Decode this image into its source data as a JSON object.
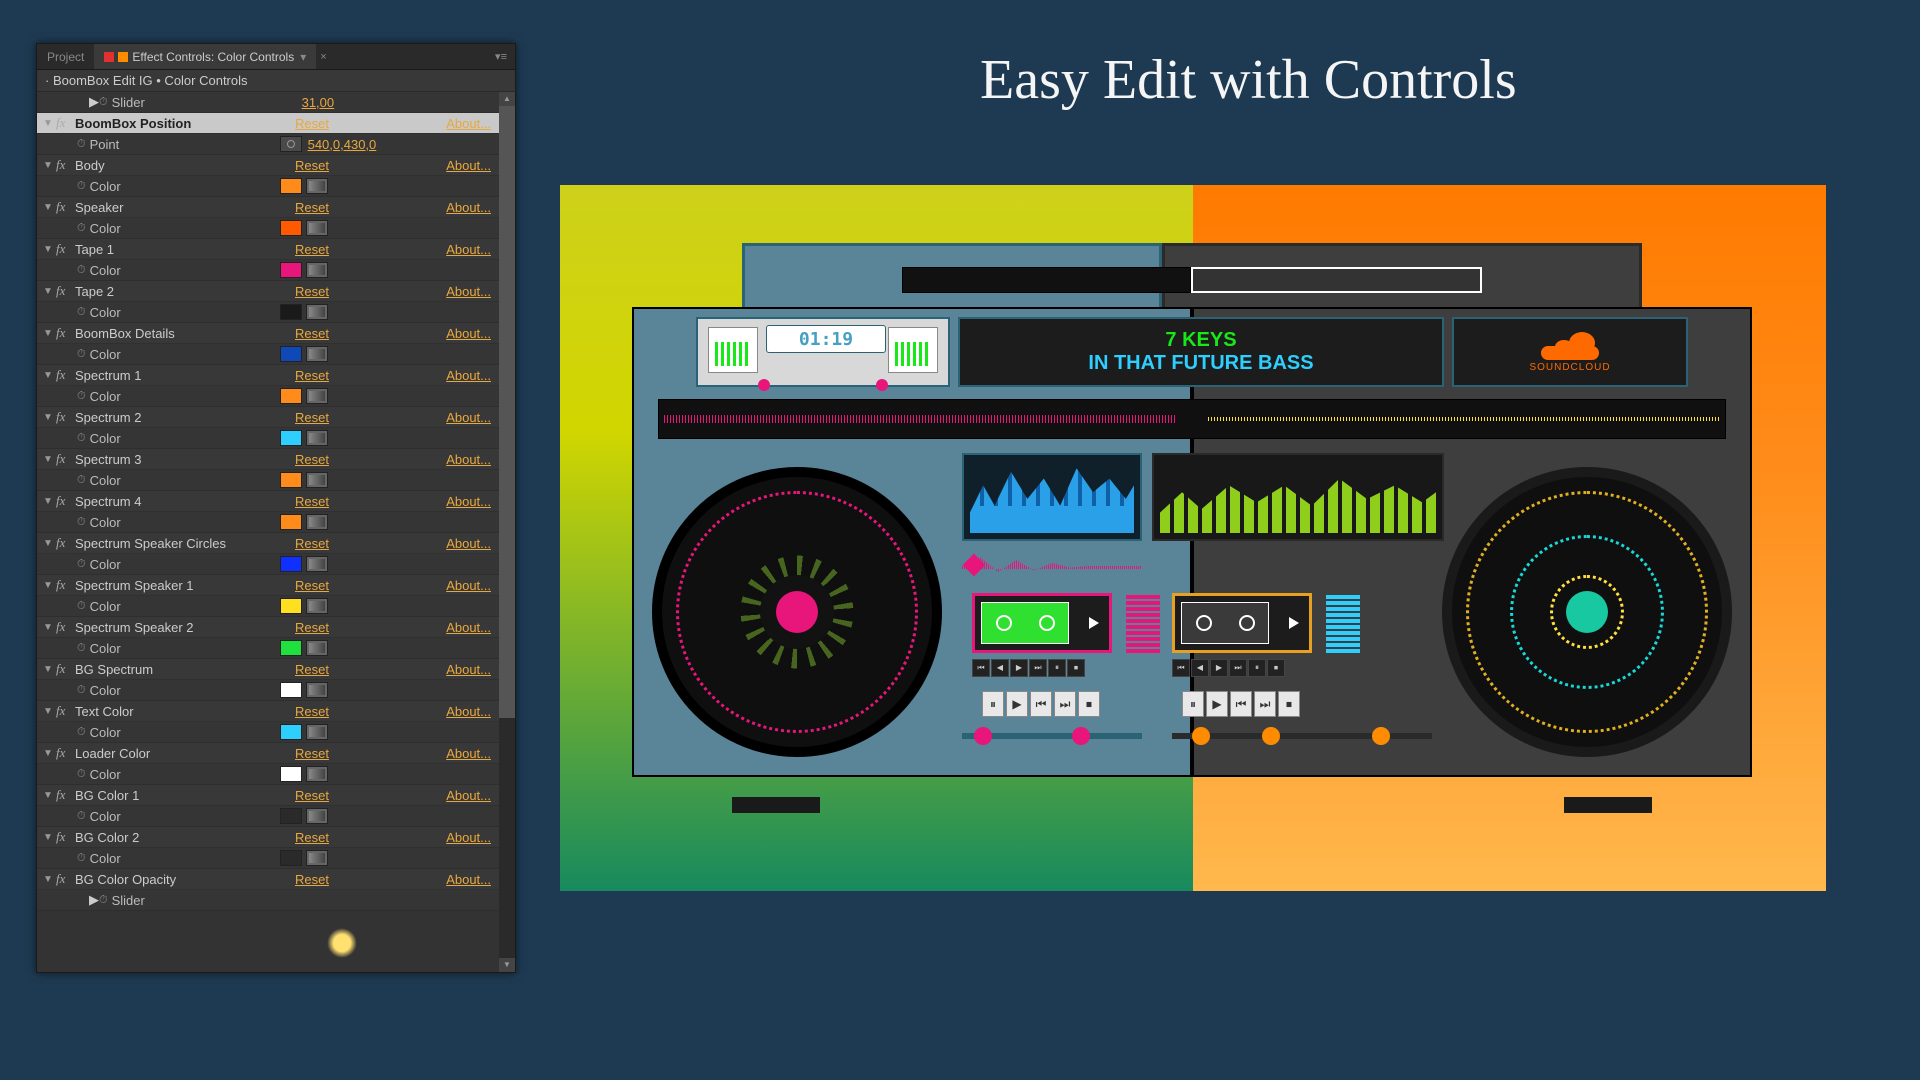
{
  "tabs": {
    "project": "Project",
    "effects": "Effect Controls: Color Controls"
  },
  "crumb": "· BoomBox Edit IG • Color Controls",
  "reset": "Reset",
  "about": "About...",
  "color_label": "Color",
  "slider_label": "Slider",
  "point_label": "Point",
  "toprow": {
    "label": "Slider",
    "val": "31,00"
  },
  "items": [
    {
      "name": "BoomBox Position",
      "sub": "point",
      "val": "540,0,430,0",
      "sel": true
    },
    {
      "name": "Body",
      "sub": "color",
      "swatch": "#ff8c1a"
    },
    {
      "name": "Speaker",
      "sub": "color",
      "swatch": "#ff5a00"
    },
    {
      "name": "Tape 1",
      "sub": "color",
      "swatch": "#e8157b"
    },
    {
      "name": "Tape 2",
      "sub": "color",
      "swatch": "#1a1a1a"
    },
    {
      "name": "BoomBox Details",
      "sub": "color",
      "swatch": "#1048b8"
    },
    {
      "name": "Spectrum 1",
      "sub": "color",
      "swatch": "#ff8c1a"
    },
    {
      "name": "Spectrum 2",
      "sub": "color",
      "swatch": "#2ecfff"
    },
    {
      "name": "Spectrum 3",
      "sub": "color",
      "swatch": "#ff8c1a"
    },
    {
      "name": "Spectrum 4",
      "sub": "color",
      "swatch": "#ff8c1a"
    },
    {
      "name": "Spectrum Speaker Circles",
      "sub": "color",
      "swatch": "#1030ff"
    },
    {
      "name": "Spectrum Speaker 1",
      "sub": "color",
      "swatch": "#ffe020"
    },
    {
      "name": "Spectrum Speaker 2",
      "sub": "color",
      "swatch": "#20e040"
    },
    {
      "name": "BG Spectrum",
      "sub": "color",
      "swatch": "#ffffff"
    },
    {
      "name": "Text Color",
      "sub": "color",
      "swatch": "#2ecfff"
    },
    {
      "name": "Loader Color",
      "sub": "color",
      "swatch": "#ffffff"
    },
    {
      "name": "BG Color 1",
      "sub": "color",
      "swatch": "#2a2a2a"
    },
    {
      "name": "BG Color 2",
      "sub": "color",
      "swatch": "#2a2a2a"
    },
    {
      "name": "BG Color Opacity",
      "sub": "slider"
    }
  ],
  "heading": "Easy Edit with Controls",
  "boombox": {
    "time": "01:19",
    "title1": "7 KEYS",
    "title2": "IN THAT FUTURE BASS",
    "brand": "SOUNDCLOUD",
    "bg_left_from": "#ced11a",
    "bg_left_to": "#178a5e",
    "bg_right_from": "#ff7a00",
    "bg_right_to": "#ffb84d",
    "body_left": "#5a8497",
    "body_right": "#3e3e3e",
    "tape_btns": [
      "⏮",
      "◀",
      "▶",
      "⏭",
      "⏸",
      "⏹"
    ],
    "transport_btns": [
      "⏸",
      "▶",
      "⏮",
      "⏭",
      "⏹"
    ]
  }
}
